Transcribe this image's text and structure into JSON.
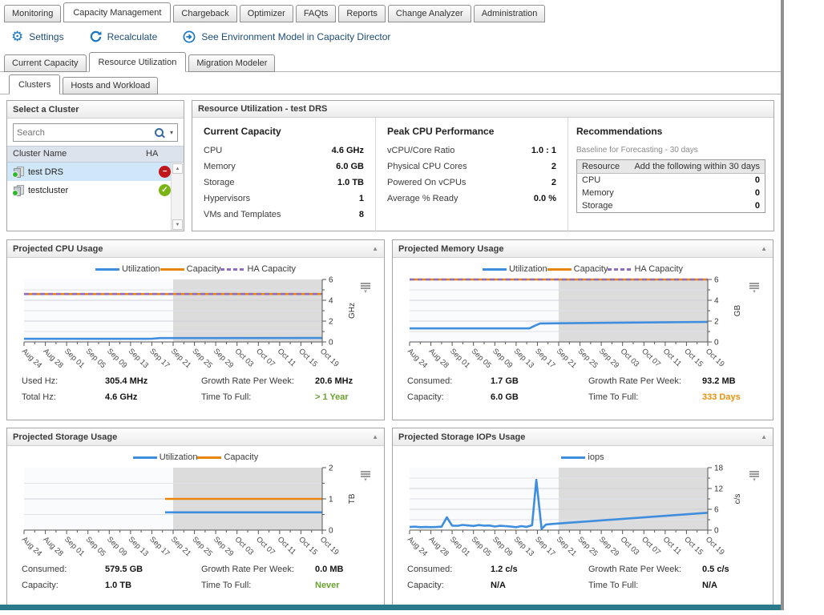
{
  "app": {
    "bottom_bar_color": "#2a7a8c"
  },
  "tabs": {
    "top": [
      {
        "label": "Monitoring",
        "active": false
      },
      {
        "label": "Capacity Management",
        "active": true
      },
      {
        "label": "Chargeback",
        "active": false
      },
      {
        "label": "Optimizer",
        "active": false
      },
      {
        "label": "FAQts",
        "active": false
      },
      {
        "label": "Reports",
        "active": false
      },
      {
        "label": "Change Analyzer",
        "active": false
      },
      {
        "label": "Administration",
        "active": false
      }
    ],
    "level2": [
      {
        "label": "Current Capacity",
        "active": false
      },
      {
        "label": "Resource Utilization",
        "active": true
      },
      {
        "label": "Migration Modeler",
        "active": false
      }
    ],
    "level3": [
      {
        "label": "Clusters",
        "active": true
      },
      {
        "label": "Hosts and Workload",
        "active": false
      }
    ]
  },
  "toolbar": {
    "items": [
      {
        "name": "settings-button",
        "icon": "gear-icon",
        "label": "Settings"
      },
      {
        "name": "recalculate-button",
        "icon": "refresh-icon",
        "label": "Recalculate"
      },
      {
        "name": "environment-model-link",
        "icon": "arrow-circle-icon",
        "label": "See Environment Model in Capacity Director"
      }
    ]
  },
  "cluster_panel": {
    "title": "Select a Cluster",
    "search_placeholder": "Search",
    "columns": [
      "Cluster Name",
      "HA"
    ],
    "rows": [
      {
        "name": "test DRS",
        "ha": "disabled",
        "selected": true
      },
      {
        "name": "testcluster",
        "ha": "enabled",
        "selected": false
      }
    ]
  },
  "resource_panel": {
    "title": "Resource Utilization - test DRS",
    "current_capacity": {
      "title": "Current Capacity",
      "rows": [
        {
          "label": "CPU",
          "value": "4.6 GHz"
        },
        {
          "label": "Memory",
          "value": "6.0 GB"
        },
        {
          "label": "Storage",
          "value": "1.0 TB"
        },
        {
          "label": "Hypervisors",
          "value": "1"
        },
        {
          "label": "VMs and Templates",
          "value": "8"
        }
      ]
    },
    "peak_cpu": {
      "title": "Peak CPU Performance",
      "rows": [
        {
          "label": "vCPU/Core Ratio",
          "value": "1.0 : 1"
        },
        {
          "label": "Physical CPU Cores",
          "value": "2"
        },
        {
          "label": "Powered On vCPUs",
          "value": "2"
        },
        {
          "label": "Average % Ready",
          "value": "0.0 %"
        }
      ]
    },
    "recommendations": {
      "title": "Recommendations",
      "subtitle": "Baseline for Forecasting - 30 days",
      "headers": [
        "Resource",
        "Add the following within 30 days"
      ],
      "rows": [
        {
          "label": "CPU",
          "value": "0"
        },
        {
          "label": "Memory",
          "value": "0"
        },
        {
          "label": "Storage",
          "value": "0"
        }
      ]
    }
  },
  "colors": {
    "utilization": "#3f8ede",
    "capacity": "#e8850d",
    "ha_capacity": "#8e6cc0",
    "projection_bg": "#dcdcdc",
    "status_good": "#69a22e",
    "status_warn": "#e8920c"
  },
  "chart_data": [
    {
      "title": "Projected CPU Usage",
      "type": "line",
      "unit": "GHz",
      "ylim": [
        0,
        6
      ],
      "yticks_major": [
        0,
        2,
        4,
        6
      ],
      "ytick_minor_step": 1,
      "x_total_days": 56,
      "x_label_interval_days": 4,
      "x_minor_tick_days": 2,
      "x_tick_labels": [
        "Aug 24",
        "Aug 28",
        "Sep 01",
        "Sep 05",
        "Sep 09",
        "Sep 13",
        "Sep 17",
        "Sep 21",
        "Sep 25",
        "Sep 29",
        "Oct 03",
        "Oct 07",
        "Oct 11",
        "Oct 15",
        "Oct 19"
      ],
      "projection_start_day": 28,
      "series": [
        {
          "name": "Utilization",
          "color": "#3f8ede",
          "points": [
            [
              0,
              0.3
            ],
            [
              23,
              0.3
            ],
            [
              24,
              0.31
            ],
            [
              25.5,
              0.37
            ],
            [
              56,
              0.38
            ]
          ]
        },
        {
          "name": "Capacity",
          "color": "#e8850d",
          "points": [
            [
              0,
              4.6
            ],
            [
              56,
              4.6
            ]
          ]
        },
        {
          "name": "HA Capacity",
          "color": "#8e6cc0",
          "dash": "6,4",
          "points": [
            [
              0,
              4.6
            ],
            [
              56,
              4.6
            ]
          ]
        }
      ],
      "stats": [
        {
          "label": "Used Hz:",
          "value": "305.4 MHz"
        },
        {
          "label": "Growth Rate Per Week:",
          "value": "20.6 MHz"
        },
        {
          "label": "Total Hz:",
          "value": "4.6 GHz"
        },
        {
          "label": "Time To Full:",
          "value": "> 1 Year",
          "color": "#69a22e"
        }
      ]
    },
    {
      "title": "Projected Memory Usage",
      "type": "line",
      "unit": "GB",
      "ylim": [
        0,
        6
      ],
      "yticks_major": [
        0,
        2,
        4,
        6
      ],
      "ytick_minor_step": 1,
      "x_total_days": 56,
      "x_label_interval_days": 4,
      "x_minor_tick_days": 2,
      "x_tick_labels": [
        "Aug 24",
        "Aug 28",
        "Sep 01",
        "Sep 05",
        "Sep 09",
        "Sep 13",
        "Sep 17",
        "Sep 21",
        "Sep 25",
        "Sep 29",
        "Oct 03",
        "Oct 07",
        "Oct 11",
        "Oct 15",
        "Oct 19"
      ],
      "projection_start_day": 28,
      "series": [
        {
          "name": "Utilization",
          "color": "#3f8ede",
          "points": [
            [
              0,
              1.3
            ],
            [
              22.5,
              1.3
            ],
            [
              23.5,
              1.55
            ],
            [
              24.5,
              1.78
            ],
            [
              56,
              1.92
            ]
          ]
        },
        {
          "name": "Capacity",
          "color": "#e8850d",
          "points": [
            [
              0,
              6
            ],
            [
              56,
              6
            ]
          ]
        },
        {
          "name": "HA Capacity",
          "color": "#8e6cc0",
          "dash": "6,4",
          "points": [
            [
              0,
              6
            ],
            [
              56,
              6
            ]
          ]
        }
      ],
      "stats": [
        {
          "label": "Consumed:",
          "value": "1.7 GB"
        },
        {
          "label": "Growth Rate Per Week:",
          "value": "93.2 MB"
        },
        {
          "label": "Capacity:",
          "value": "6.0 GB"
        },
        {
          "label": "Time To Full:",
          "value": "333 Days",
          "color": "#e8920c"
        }
      ]
    },
    {
      "title": "Projected Storage Usage",
      "type": "line",
      "unit": "TB",
      "ylim": [
        0,
        2
      ],
      "yticks_major": [
        0,
        1,
        2
      ],
      "ytick_minor_step": 0.5,
      "x_total_days": 56,
      "x_label_interval_days": 4,
      "x_minor_tick_days": 2,
      "x_tick_labels": [
        "Aug 24",
        "Aug 28",
        "Sep 01",
        "Sep 05",
        "Sep 09",
        "Sep 13",
        "Sep 17",
        "Sep 21",
        "Sep 25",
        "Sep 29",
        "Oct 03",
        "Oct 07",
        "Oct 11",
        "Oct 15",
        "Oct 19"
      ],
      "projection_start_day": 28,
      "series": [
        {
          "name": "Utilization",
          "color": "#3f8ede",
          "points": [
            [
              26.5,
              0.57
            ],
            [
              56,
              0.57
            ]
          ]
        },
        {
          "name": "Capacity",
          "color": "#e8850d",
          "points": [
            [
              26.5,
              1.0
            ],
            [
              56,
              1.0
            ]
          ]
        }
      ],
      "stats": [
        {
          "label": "Consumed:",
          "value": "579.5 GB"
        },
        {
          "label": "Growth Rate Per Week:",
          "value": "0.0 MB"
        },
        {
          "label": "Capacity:",
          "value": "1.0 TB"
        },
        {
          "label": "Time To Full:",
          "value": "Never",
          "color": "#69a22e"
        }
      ]
    },
    {
      "title": "Projected Storage IOPs Usage",
      "type": "line",
      "unit": "c/s",
      "ylim": [
        0,
        18
      ],
      "yticks_major": [
        0,
        6,
        12,
        18
      ],
      "ytick_minor_step": 3,
      "x_total_days": 56,
      "x_label_interval_days": 4,
      "x_minor_tick_days": 2,
      "x_tick_labels": [
        "Aug 24",
        "Aug 28",
        "Sep 01",
        "Sep 05",
        "Sep 09",
        "Sep 13",
        "Sep 17",
        "Sep 21",
        "Sep 25",
        "Sep 29",
        "Oct 03",
        "Oct 07",
        "Oct 11",
        "Oct 15",
        "Oct 19"
      ],
      "projection_start_day": 28,
      "series": [
        {
          "name": "iops",
          "color": "#3f8ede",
          "points": [
            [
              0,
              0.9
            ],
            [
              1,
              1.0
            ],
            [
              2,
              0.85
            ],
            [
              3,
              0.9
            ],
            [
              4,
              0.85
            ],
            [
              5,
              0.9
            ],
            [
              6,
              1.0
            ],
            [
              7,
              3.7
            ],
            [
              8,
              1.3
            ],
            [
              9,
              1.25
            ],
            [
              10,
              1.5
            ],
            [
              11,
              1.35
            ],
            [
              12,
              1.2
            ],
            [
              13,
              1.45
            ],
            [
              14,
              1.3
            ],
            [
              15,
              1.35
            ],
            [
              16,
              1.05
            ],
            [
              17,
              1.25
            ],
            [
              18,
              1.15
            ],
            [
              19,
              1.05
            ],
            [
              20,
              0.85
            ],
            [
              21,
              1.15
            ],
            [
              22,
              0.95
            ],
            [
              23,
              1.4
            ],
            [
              23.8,
              14.5
            ],
            [
              24.8,
              0.35
            ],
            [
              25.6,
              1.6
            ],
            [
              27,
              1.8
            ],
            [
              56,
              5.0
            ]
          ]
        }
      ],
      "stats": [
        {
          "label": "Consumed:",
          "value": "1.2 c/s"
        },
        {
          "label": "Growth Rate Per Week:",
          "value": "0.5 c/s"
        },
        {
          "label": "Capacity:",
          "value": "N/A"
        },
        {
          "label": "Time To Full:",
          "value": "N/A"
        }
      ]
    }
  ]
}
